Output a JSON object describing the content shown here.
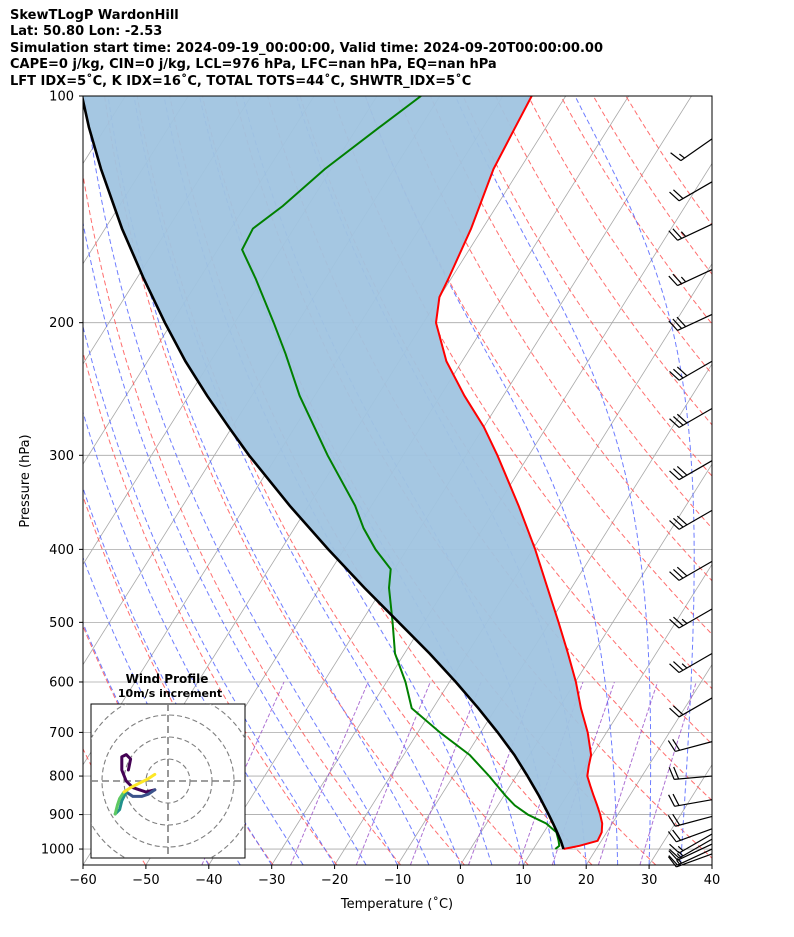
{
  "header": {
    "line1": "SkewTLogP WardonHill",
    "line2": "Lat: 50.80   Lon: -2.53",
    "line3": "Simulation start time: 2024-09-19_00:00:00, Valid time: 2024-09-20T00:00:00.00",
    "line4": "CAPE=0 j/kg, CIN=0 j/kg, LCL=976 hPa, LFC=nan hPa, EQ=nan hPa",
    "line5": "LFT IDX=5˚C, K IDX=16˚C, TOTAL TOTS=44˚C, SHWTR_IDX=5˚C"
  },
  "chart_data": {
    "type": "line",
    "xlabel": "Temperature (˚C)",
    "ylabel": "Pressure (hPa)",
    "xlim": [
      -60,
      40
    ],
    "ylim": [
      1050,
      100
    ],
    "y_scale": "log",
    "grid": true,
    "x_ticks": [
      -60,
      -50,
      -40,
      -30,
      -20,
      -10,
      0,
      10,
      20,
      30,
      40
    ],
    "x_tick_labels": [
      "−60",
      "−50",
      "−40",
      "−30",
      "−20",
      "−10",
      "0",
      "10",
      "20",
      "30",
      "40"
    ],
    "y_ticks": [
      100,
      200,
      300,
      400,
      500,
      600,
      700,
      800,
      900,
      1000
    ],
    "y_tick_labels": [
      "100",
      "200",
      "300",
      "400",
      "500",
      "600",
      "700",
      "800",
      "900",
      "1000"
    ],
    "colors": {
      "temperature": "#ff0000",
      "dewpoint": "#008000",
      "parcel": "#000000",
      "shade": "#a0c4e0",
      "dry_adiabat": "#ff5555",
      "moist_adiabat": "#5566ff",
      "mixing_ratio": "#9a4fc8",
      "isotherm": "#a8a8a8"
    },
    "series": [
      {
        "key": "temperature",
        "pressure": [
          1000,
          990,
          975,
          950,
          925,
          900,
          875,
          850,
          825,
          800,
          775,
          750,
          700,
          650,
          600,
          550,
          500,
          450,
          400,
          350,
          300,
          275,
          250,
          225,
          200,
          185,
          175,
          150,
          125,
          110,
          100
        ],
        "temp": [
          14.8,
          17.0,
          19.4,
          19.2,
          18.4,
          17.2,
          15.8,
          14.3,
          12.8,
          11.3,
          10.5,
          9.8,
          7.0,
          3.5,
          0.1,
          -4.0,
          -8.6,
          -13.8,
          -19.6,
          -26.6,
          -35.0,
          -40.0,
          -46.2,
          -52.5,
          -58.0,
          -60.0,
          -60.4,
          -61.8,
          -64.2,
          -64.9,
          -65.4
        ]
      },
      {
        "key": "dewpoint",
        "pressure": [
          1000,
          990,
          975,
          950,
          925,
          900,
          875,
          850,
          800,
          750,
          700,
          650,
          600,
          550,
          500,
          450,
          425,
          400,
          375,
          350,
          300,
          250,
          220,
          200,
          175,
          160,
          150,
          140,
          125,
          110,
          100
        ],
        "temp": [
          13.5,
          13.8,
          13.2,
          12.0,
          9.5,
          5.7,
          2.7,
          0.3,
          -4.3,
          -9.5,
          -16.5,
          -23.4,
          -27.0,
          -31.5,
          -35.0,
          -39.0,
          -40.6,
          -45.0,
          -49.0,
          -52.6,
          -62.0,
          -72.4,
          -78.8,
          -83.8,
          -91.0,
          -96.1,
          -96.5,
          -94.0,
          -91.0,
          -86.5,
          -83.0
        ]
      },
      {
        "key": "parcel",
        "pressure": [
          1000,
          976,
          950,
          925,
          900,
          850,
          800,
          750,
          700,
          650,
          600,
          550,
          500,
          450,
          400,
          350,
          300,
          275,
          250,
          225,
          200,
          175,
          150,
          125,
          110,
          100
        ],
        "temp": [
          14.8,
          13.6,
          12.1,
          10.6,
          9.0,
          5.6,
          1.8,
          -2.4,
          -7.3,
          -12.8,
          -19.0,
          -26.0,
          -34.0,
          -42.9,
          -52.5,
          -63.0,
          -74.5,
          -80.6,
          -87.1,
          -94.0,
          -101.1,
          -108.8,
          -117.3,
          -126.6,
          -132.7,
          -136.9
        ]
      }
    ]
  },
  "hodograph": {
    "title": "Wind Profile",
    "subtitle": "10m/s increment",
    "ring_spacing": 10,
    "segments": [
      {
        "color": "#440154",
        "points": [
          [
            -18,
            5
          ],
          [
            -17,
            10
          ],
          [
            -19,
            12
          ],
          [
            -21,
            11
          ],
          [
            -21,
            5
          ],
          [
            -19,
            0
          ],
          [
            -16,
            -3
          ],
          [
            -13,
            -4
          ],
          [
            -10,
            -5
          ],
          [
            -6,
            -4
          ]
        ]
      },
      {
        "color": "#3b528b",
        "points": [
          [
            -6,
            -4
          ],
          [
            -9,
            -6
          ],
          [
            -12,
            -7
          ],
          [
            -16,
            -7
          ],
          [
            -19,
            -5
          ]
        ]
      },
      {
        "color": "#21918c",
        "points": [
          [
            -19,
            -5
          ],
          [
            -21,
            -9
          ],
          [
            -22,
            -13
          ],
          [
            -24,
            -15
          ]
        ]
      },
      {
        "color": "#5ec962",
        "points": [
          [
            -24,
            -15
          ],
          [
            -23,
            -11
          ],
          [
            -22,
            -8
          ],
          [
            -20,
            -5
          ]
        ]
      },
      {
        "color": "#fde725",
        "points": [
          [
            -20,
            -5
          ],
          [
            -17,
            -3
          ],
          [
            -13,
            -1
          ],
          [
            -9,
            1
          ],
          [
            -6,
            3
          ]
        ]
      }
    ]
  },
  "wind_barbs": [
    {
      "pressure": 1015,
      "speed_kt": 15,
      "dir_deg": 250
    },
    {
      "pressure": 1000,
      "speed_kt": 15,
      "dir_deg": 245
    },
    {
      "pressure": 985,
      "speed_kt": 15,
      "dir_deg": 245
    },
    {
      "pressure": 970,
      "speed_kt": 15,
      "dir_deg": 240
    },
    {
      "pressure": 955,
      "speed_kt": 15,
      "dir_deg": 240
    },
    {
      "pressure": 940,
      "speed_kt": 20,
      "dir_deg": 250
    },
    {
      "pressure": 905,
      "speed_kt": 20,
      "dir_deg": 255
    },
    {
      "pressure": 860,
      "speed_kt": 20,
      "dir_deg": 260
    },
    {
      "pressure": 800,
      "speed_kt": 20,
      "dir_deg": 265
    },
    {
      "pressure": 720,
      "speed_kt": 20,
      "dir_deg": 255
    },
    {
      "pressure": 630,
      "speed_kt": 20,
      "dir_deg": 240
    },
    {
      "pressure": 550,
      "speed_kt": 25,
      "dir_deg": 240
    },
    {
      "pressure": 480,
      "speed_kt": 25,
      "dir_deg": 240
    },
    {
      "pressure": 415,
      "speed_kt": 30,
      "dir_deg": 240
    },
    {
      "pressure": 355,
      "speed_kt": 30,
      "dir_deg": 240
    },
    {
      "pressure": 305,
      "speed_kt": 30,
      "dir_deg": 240
    },
    {
      "pressure": 260,
      "speed_kt": 30,
      "dir_deg": 240
    },
    {
      "pressure": 225,
      "speed_kt": 30,
      "dir_deg": 240
    },
    {
      "pressure": 195,
      "speed_kt": 30,
      "dir_deg": 245
    },
    {
      "pressure": 170,
      "speed_kt": 25,
      "dir_deg": 245
    },
    {
      "pressure": 148,
      "speed_kt": 25,
      "dir_deg": 245
    },
    {
      "pressure": 130,
      "speed_kt": 20,
      "dir_deg": 240
    },
    {
      "pressure": 114,
      "speed_kt": 15,
      "dir_deg": 235
    }
  ]
}
